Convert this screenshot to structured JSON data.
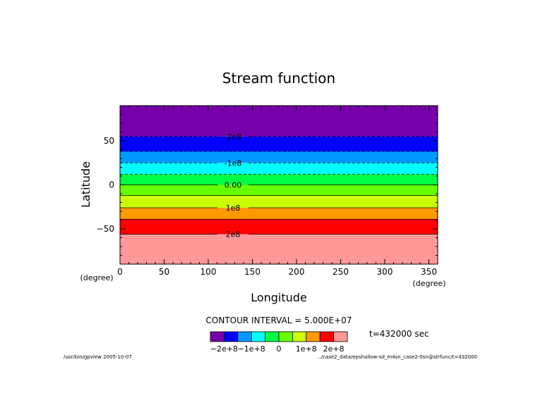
{
  "chart_data": {
    "type": "heatmap",
    "title": "Stream function",
    "xlabel": "Longitude",
    "ylabel": "Latitude",
    "x_unit": "(degree)",
    "y_unit": "(degree)",
    "xlim": [
      0,
      360
    ],
    "ylim": [
      -90,
      90
    ],
    "x_ticks": [
      0,
      50,
      100,
      150,
      200,
      250,
      300,
      350
    ],
    "y_ticks": [
      -50,
      0,
      50
    ],
    "contour_interval_text": "CONTOUR INTERVAL = 5.000E+07",
    "bands": [
      {
        "from": -90,
        "to": -56,
        "color": "#ff9999"
      },
      {
        "from": -56,
        "to": -39,
        "color": "#ff0000"
      },
      {
        "from": -39,
        "to": -26,
        "color": "#ff9900"
      },
      {
        "from": -26,
        "to": -12,
        "color": "#ccff00"
      },
      {
        "from": -12,
        "to": 0,
        "color": "#66ff00"
      },
      {
        "from": 0,
        "to": 12,
        "color": "#00ff44"
      },
      {
        "from": 12,
        "to": 25,
        "color": "#00ffff"
      },
      {
        "from": 25,
        "to": 38,
        "color": "#0099ff"
      },
      {
        "from": 38,
        "to": 55,
        "color": "#0000ff"
      },
      {
        "from": 55,
        "to": 90,
        "color": "#7700aa"
      }
    ],
    "contours": [
      {
        "lat": 55,
        "dashed": true,
        "label": "-2e8"
      },
      {
        "lat": 38,
        "dashed": true,
        "label": ""
      },
      {
        "lat": 25,
        "dashed": true,
        "label": "-1e8"
      },
      {
        "lat": 12,
        "dashed": true,
        "label": ""
      },
      {
        "lat": 0,
        "dashed": false,
        "label": "0.00"
      },
      {
        "lat": -12,
        "dashed": false,
        "label": ""
      },
      {
        "lat": -26,
        "dashed": false,
        "label": "1e8"
      },
      {
        "lat": -39,
        "dashed": false,
        "label": ""
      },
      {
        "lat": -56,
        "dashed": false,
        "label": "2e8"
      }
    ],
    "colorbar": {
      "colors": [
        "#7700aa",
        "#0000ff",
        "#0099ff",
        "#00ffff",
        "#00ff44",
        "#66ff00",
        "#ccff00",
        "#ff9900",
        "#ff0000",
        "#ff9999"
      ],
      "labels": [
        "−2e+8",
        "−1e+8",
        "0",
        "1e+8",
        "2e+8"
      ]
    },
    "time_label": "t=432000 sec",
    "footer_left": "/usr/bin/gpview  2005-10-07",
    "footer_right": "../case2_data/epshallow-sd_m4sn_case2-0sn@strfunc/t=432000"
  }
}
